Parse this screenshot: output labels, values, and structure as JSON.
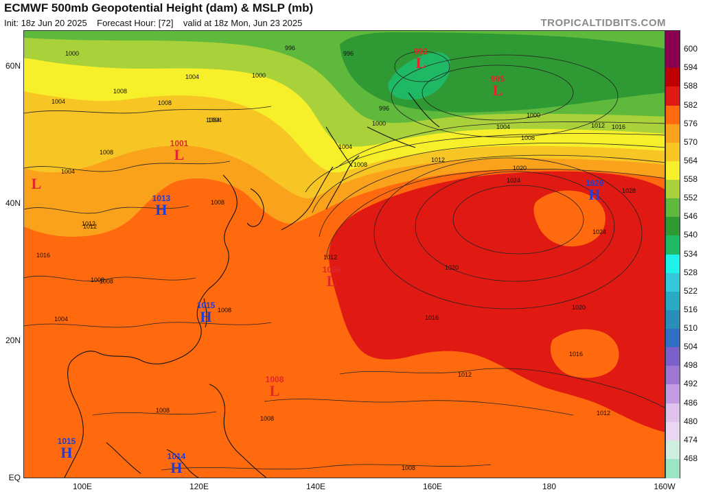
{
  "header": {
    "title": "ECMWF 500mb Geopotential Height (dam) & MSLP (mb)",
    "init": "Init: 18z Jun 20 2025",
    "forecast_hour": "Forecast Hour: [72]",
    "valid": "valid at 18z Mon, Jun 23 2025",
    "source": "TROPICALTIDBITS.COM"
  },
  "axes": {
    "lat_labels": [
      "60N",
      "40N",
      "20N",
      "EQ"
    ],
    "lon_labels": [
      "100E",
      "120E",
      "140E",
      "160E",
      "180",
      "160W"
    ]
  },
  "colorbar": {
    "levels": [
      "600",
      "594",
      "588",
      "582",
      "576",
      "570",
      "564",
      "558",
      "552",
      "546",
      "540",
      "534",
      "528",
      "522",
      "516",
      "510",
      "504",
      "498",
      "492",
      "486",
      "480",
      "474",
      "468"
    ],
    "colors": [
      "#8b0050",
      "#c00000",
      "#e01a12",
      "#ff6a0f",
      "#fba21c",
      "#f8c624",
      "#f6ef2a",
      "#a8d13a",
      "#5fb93d",
      "#2f9a33",
      "#1fb965",
      "#1ef0ea",
      "#34c8d8",
      "#2aaac0",
      "#2a8fb8",
      "#2f6fc4",
      "#7a60c8",
      "#9d77d3",
      "#c39ce2",
      "#e0c3ec",
      "#e9d6f0",
      "#cfeee0",
      "#9be6c2"
    ]
  },
  "pressure_systems": [
    {
      "type": "L",
      "value": "992",
      "letter": "L"
    },
    {
      "type": "L",
      "value": "995",
      "letter": "L"
    },
    {
      "type": "L",
      "value": "1001",
      "letter": "L"
    },
    {
      "type": "L",
      "value": "",
      "letter": "L"
    },
    {
      "type": "H",
      "value": "1013",
      "letter": "H"
    },
    {
      "type": "H",
      "value": "1029",
      "letter": "H"
    },
    {
      "type": "L",
      "value": "1006",
      "letter": "L"
    },
    {
      "type": "H",
      "value": "1015",
      "letter": "H"
    },
    {
      "type": "L",
      "value": "1008",
      "letter": "L"
    },
    {
      "type": "H",
      "value": "1015",
      "letter": "H"
    },
    {
      "type": "H",
      "value": "1014",
      "letter": "H"
    }
  ],
  "isobar_labels": [
    "1000",
    "996",
    "996",
    "1000",
    "1004",
    "1008",
    "1004",
    "1008",
    "1004",
    "1000",
    "996",
    "1000",
    "1004",
    "1008",
    "1012",
    "1016",
    "1004",
    "1004",
    "1008",
    "1012",
    "1020",
    "1024",
    "1028",
    "1024",
    "1020",
    "1016",
    "1012",
    "1008",
    "1012",
    "1020",
    "1016",
    "1012",
    "1008",
    "1004",
    "1008",
    "1004",
    "1008",
    "1012",
    "1016",
    "1012",
    "1008",
    "1008",
    "1008",
    "1008"
  ]
}
